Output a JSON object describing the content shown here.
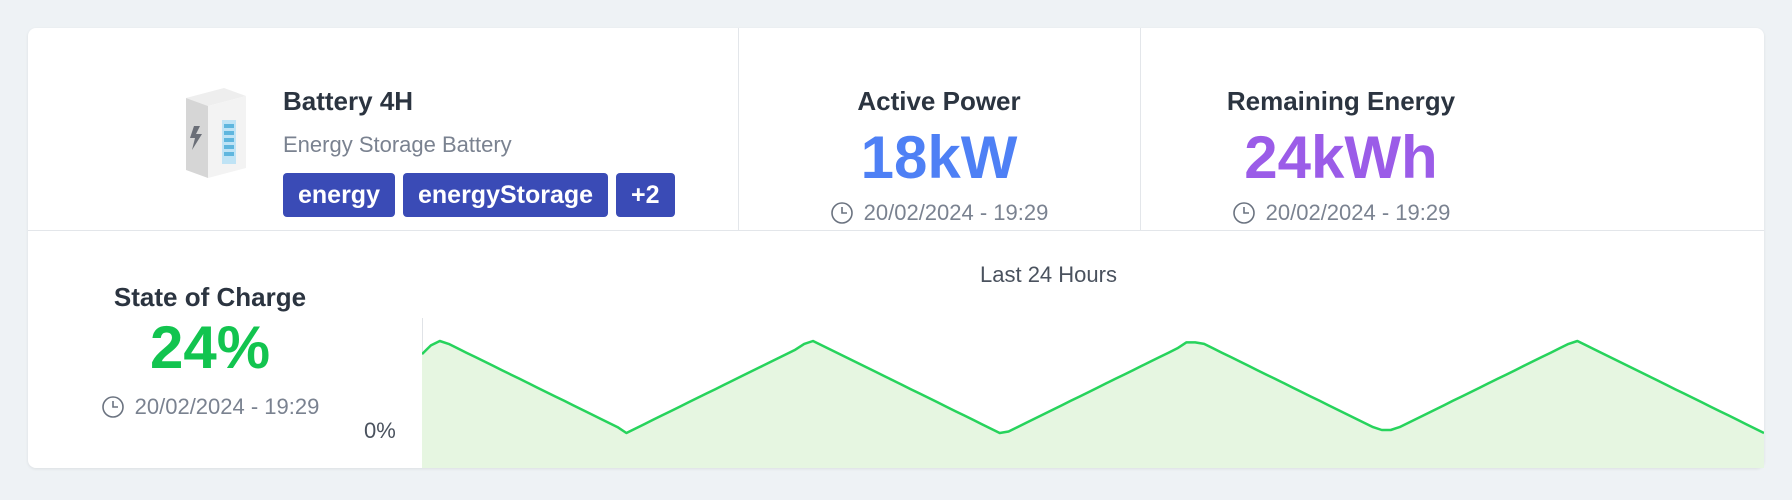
{
  "device": {
    "name": "Battery 4H",
    "type": "Energy Storage Battery",
    "icon": "battery-cabinet-icon",
    "tags": [
      "energy",
      "energyStorage",
      "+2"
    ]
  },
  "metrics": {
    "active_power": {
      "label": "Active Power",
      "value": "18kW",
      "timestamp": "20/02/2024 - 19:29",
      "color": "#4e80f5"
    },
    "remaining_energy": {
      "label": "Remaining Energy",
      "value": "24kWh",
      "timestamp": "20/02/2024 - 19:29",
      "color": "#9b5ce8"
    },
    "state_of_charge": {
      "label": "State of Charge",
      "value": "24%",
      "timestamp": "20/02/2024 - 19:29",
      "color": "#12c44f"
    }
  },
  "chart_data": {
    "type": "area",
    "title": "Last 24 Hours",
    "ylabel_min": "0%",
    "ylim": [
      0,
      100
    ],
    "color": "#27d35c",
    "fill": "#e6f6e1",
    "values": [
      78,
      84,
      87,
      85,
      82,
      79,
      76,
      73,
      70,
      67,
      64,
      61,
      58,
      55,
      52,
      49,
      46,
      43,
      40,
      37,
      34,
      31,
      28,
      24,
      27,
      30,
      33,
      36,
      39,
      42,
      45,
      48,
      51,
      54,
      57,
      60,
      63,
      66,
      69,
      72,
      75,
      78,
      81,
      85,
      87,
      84,
      81,
      78,
      75,
      72,
      69,
      66,
      63,
      60,
      57,
      54,
      51,
      48,
      45,
      42,
      39,
      36,
      33,
      30,
      27,
      24,
      25,
      28,
      31,
      34,
      37,
      40,
      43,
      46,
      49,
      52,
      55,
      58,
      61,
      64,
      67,
      70,
      73,
      76,
      79,
      82,
      86,
      86,
      85,
      82,
      79,
      76,
      73,
      70,
      67,
      64,
      61,
      58,
      55,
      52,
      49,
      46,
      43,
      40,
      37,
      34,
      31,
      28,
      26,
      26,
      28,
      31,
      34,
      37,
      40,
      43,
      46,
      49,
      52,
      55,
      58,
      61,
      64,
      67,
      70,
      73,
      76,
      79,
      82,
      85,
      87,
      84,
      81,
      78,
      75,
      72,
      69,
      66,
      63,
      60,
      57,
      54,
      51,
      48,
      45,
      42,
      39,
      36,
      33,
      30,
      27,
      24
    ]
  }
}
